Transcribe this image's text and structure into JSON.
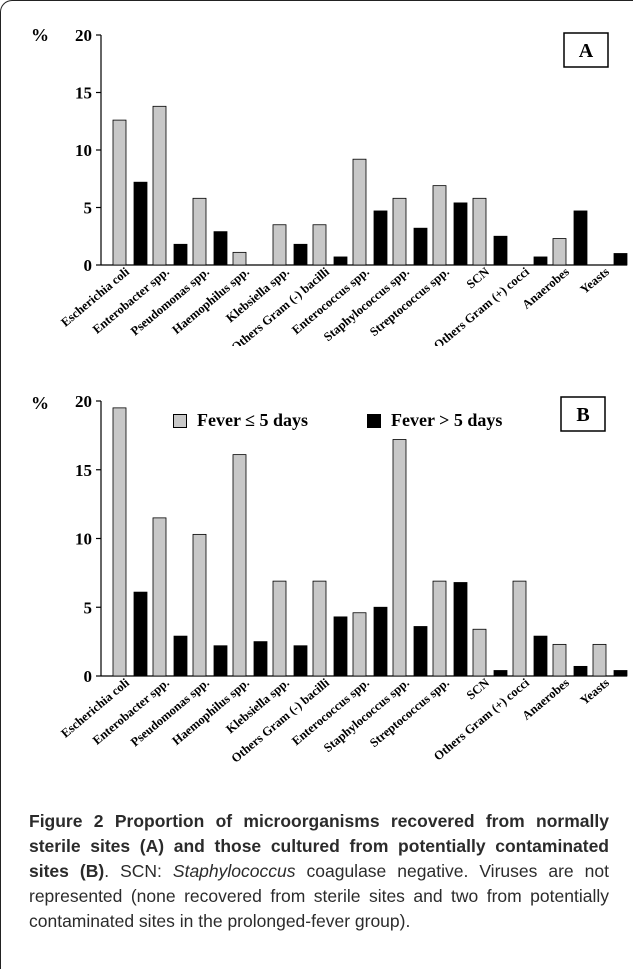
{
  "colors": {
    "fever_short": "#c8c8c8",
    "fever_long": "#000000"
  },
  "legend": [
    {
      "label": "Fever ≤ 5 days",
      "color": "#c8c8c8"
    },
    {
      "label": "Fever > 5 days",
      "color": "#000000"
    }
  ],
  "chart_data": [
    {
      "type": "bar",
      "panel_label": "A",
      "y_unit_label": "%",
      "ylim": [
        0,
        20
      ],
      "yticks": [
        0,
        5,
        10,
        15,
        20
      ],
      "categories": [
        "Escherichia coli",
        "Enterobacter spp.",
        "Pseudomonas spp.",
        "Haemophilus spp.",
        "Klebsiella spp.",
        "Others Gram (-) bacilli",
        "Enterococcus spp.",
        "Staphylococcus spp.",
        "Streptococcus spp.",
        "SCN",
        "Others Gram (+) cocci",
        "Anaerobes",
        "Yeasts"
      ],
      "series": [
        {
          "name": "Fever ≤ 5 days",
          "values": [
            12.6,
            13.8,
            5.8,
            1.1,
            3.5,
            3.5,
            9.2,
            5.8,
            6.9,
            5.8,
            0,
            2.3,
            0
          ]
        },
        {
          "name": "Fever > 5 days",
          "values": [
            7.2,
            1.8,
            2.9,
            0,
            1.8,
            0.7,
            4.7,
            3.2,
            5.4,
            2.5,
            0.7,
            4.7,
            1.0
          ]
        }
      ]
    },
    {
      "type": "bar",
      "panel_label": "B",
      "y_unit_label": "%",
      "ylim": [
        0,
        20
      ],
      "yticks": [
        0,
        5,
        10,
        15,
        20
      ],
      "categories": [
        "Escherichia coli",
        "Enterobacter spp.",
        "Pseudomonas spp.",
        "Haemophilus spp.",
        "Klebsiella spp.",
        "Others Gram (-) bacilli",
        "Enterococcus spp.",
        "Staphylococcus spp.",
        "Streptococcus spp.",
        "SCN",
        "Others Gram (+) cocci",
        "Anaerobes",
        "Yeasts"
      ],
      "series": [
        {
          "name": "Fever ≤ 5 days",
          "values": [
            19.5,
            11.5,
            10.3,
            16.1,
            6.9,
            6.9,
            4.6,
            17.2,
            6.9,
            3.4,
            6.9,
            2.3,
            2.3
          ]
        },
        {
          "name": "Fever > 5 days",
          "values": [
            6.1,
            2.9,
            2.2,
            2.5,
            2.2,
            4.3,
            5.0,
            3.6,
            6.8,
            0.4,
            2.9,
            0.7,
            0.4
          ]
        }
      ]
    }
  ],
  "caption": {
    "head": "Figure 2 Proportion of microorganisms recovered from normally sterile sites (A) and those cultured from potentially contaminated sites (B)",
    "p1": ". SCN: ",
    "p2": "Staphylococcus",
    "p3": " coagulase negative. Viruses are not represented (none recovered from sterile sites and two from potentially contaminated sites in the prolonged-fever group)."
  }
}
